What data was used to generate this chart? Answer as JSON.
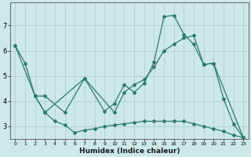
{
  "xlabel": "Humidex (Indice chaleur)",
  "bg_color": "#cce8e8",
  "line_color": "#2d7a6e",
  "grid_color": "#b0d0d0",
  "xlim": [
    -0.5,
    23.5
  ],
  "ylim": [
    2.5,
    7.9
  ],
  "yticks": [
    3,
    4,
    5,
    6,
    7
  ],
  "xticks": [
    0,
    1,
    2,
    3,
    4,
    5,
    6,
    7,
    8,
    9,
    10,
    11,
    12,
    13,
    14,
    15,
    16,
    17,
    18,
    19,
    20,
    21,
    22,
    23
  ],
  "series1_x": [
    0,
    1,
    2,
    3,
    5,
    7,
    9,
    10,
    11,
    12,
    13,
    14,
    15,
    16,
    17,
    18,
    19,
    20,
    21,
    22,
    23
  ],
  "series1_y": [
    6.2,
    5.5,
    4.2,
    4.2,
    3.55,
    4.9,
    3.6,
    3.9,
    4.65,
    4.35,
    4.7,
    5.55,
    7.35,
    7.4,
    6.65,
    6.25,
    5.45,
    5.5,
    4.1,
    3.1,
    2.55
  ],
  "series2_x": [
    0,
    2,
    3,
    7,
    10,
    11,
    12,
    13,
    14,
    15,
    16,
    17,
    18,
    19,
    20,
    23
  ],
  "series2_y": [
    6.2,
    4.2,
    3.55,
    4.9,
    3.55,
    4.35,
    4.65,
    4.85,
    5.35,
    6.0,
    6.25,
    6.5,
    6.6,
    5.45,
    5.5,
    2.55
  ],
  "series3_x": [
    2,
    3,
    4,
    5,
    6,
    7,
    8,
    9,
    10,
    11,
    12,
    13,
    14,
    15,
    16,
    17,
    18,
    19,
    20,
    21,
    22,
    23
  ],
  "series3_y": [
    4.2,
    3.55,
    3.2,
    3.05,
    2.75,
    2.85,
    2.9,
    3.0,
    3.05,
    3.1,
    3.15,
    3.2,
    3.2,
    3.2,
    3.2,
    3.2,
    3.1,
    3.0,
    2.9,
    2.8,
    2.65,
    2.55
  ]
}
